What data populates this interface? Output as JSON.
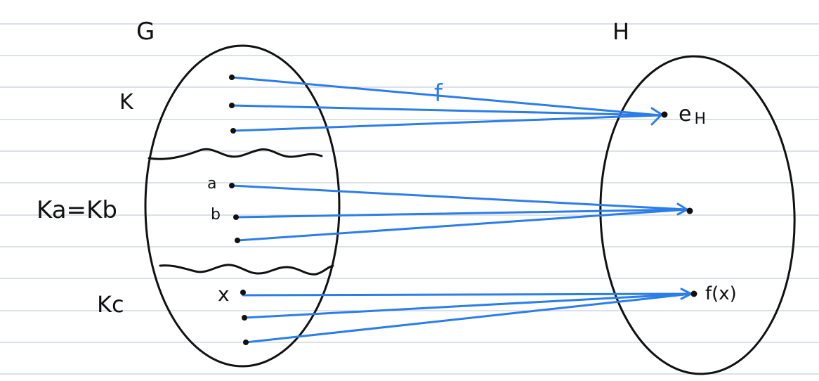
{
  "labels": {
    "set_g": "G",
    "set_h": "H",
    "coset_k": "K",
    "coset_ka": "Ka=Kb",
    "coset_kc": "Kc",
    "point_a": "a",
    "point_b": "b",
    "point_x": "x",
    "map_name": "f",
    "identity_h": "e",
    "identity_h_sub": "H",
    "image_fx": "f(x)"
  },
  "colors": {
    "map_arrows": "#2b7de9",
    "outlines": "#111111",
    "ruled_lines": "#b7c3d2"
  }
}
